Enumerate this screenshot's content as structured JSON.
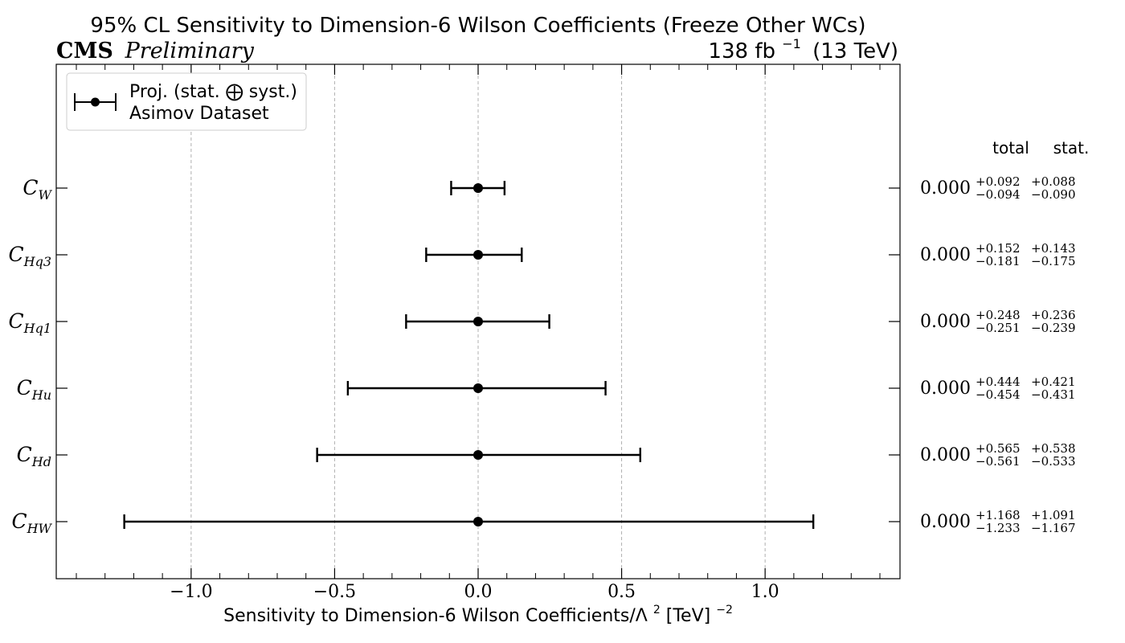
{
  "header": {
    "title": "95% CL Sensitivity to Dimension-6 Wilson Coefficients (Freeze Other WCs)",
    "experiment": "CMS",
    "status": "Preliminary",
    "lumi_value": "138 fb",
    "lumi_exp": "−1",
    "energy": "(13 TeV)"
  },
  "legend": {
    "line1": "Proj. (stat. ⨁ syst.)",
    "line2": "Asimov Dataset"
  },
  "table": {
    "total_header": "total",
    "stat_header": "stat."
  },
  "axis": {
    "xlabel_main": "Sensitivity to Dimension-6 Wilson Coefficients/Λ",
    "xlabel_sup": "2",
    "xlabel_unit": " [TeV]",
    "xlabel_unit_sup": "−2"
  },
  "colors": {
    "marker": "#000000",
    "grid": "#b0b0b0"
  },
  "chart_data": {
    "type": "scatter",
    "orientation": "horizontal",
    "xlim": [
      -1.47,
      1.47
    ],
    "xticks": [
      {
        "v": -1.0,
        "label": "−1.0"
      },
      {
        "v": -0.5,
        "label": "−0.5"
      },
      {
        "v": 0.0,
        "label": "0.0"
      },
      {
        "v": 0.5,
        "label": "0.5"
      },
      {
        "v": 1.0,
        "label": "1.0"
      }
    ],
    "grid": "vertical-dashed",
    "legend_position": "top-left",
    "series": [
      {
        "label": "C",
        "sub": "W",
        "value": 0.0,
        "value_text": "0.000",
        "total_up": 0.092,
        "total_down": -0.094,
        "total_up_text": "+0.092",
        "total_down_text": "−0.094",
        "stat_up_text": "+0.088",
        "stat_down_text": "−0.090"
      },
      {
        "label": "C",
        "sub": "Hq3",
        "value": 0.0,
        "value_text": "0.000",
        "total_up": 0.152,
        "total_down": -0.181,
        "total_up_text": "+0.152",
        "total_down_text": "−0.181",
        "stat_up_text": "+0.143",
        "stat_down_text": "−0.175"
      },
      {
        "label": "C",
        "sub": "Hq1",
        "value": 0.0,
        "value_text": "0.000",
        "total_up": 0.248,
        "total_down": -0.251,
        "total_up_text": "+0.248",
        "total_down_text": "−0.251",
        "stat_up_text": "+0.236",
        "stat_down_text": "−0.239"
      },
      {
        "label": "C",
        "sub": "Hu",
        "value": 0.0,
        "value_text": "0.000",
        "total_up": 0.444,
        "total_down": -0.454,
        "total_up_text": "+0.444",
        "total_down_text": "−0.454",
        "stat_up_text": "+0.421",
        "stat_down_text": "−0.431"
      },
      {
        "label": "C",
        "sub": "Hd",
        "value": 0.0,
        "value_text": "0.000",
        "total_up": 0.565,
        "total_down": -0.561,
        "total_up_text": "+0.565",
        "total_down_text": "−0.561",
        "stat_up_text": "+0.538",
        "stat_down_text": "−0.533"
      },
      {
        "label": "C",
        "sub": "HW",
        "value": 0.0,
        "value_text": "0.000",
        "total_up": 1.168,
        "total_down": -1.233,
        "total_up_text": "+1.168",
        "total_down_text": "−1.233",
        "stat_up_text": "+1.091",
        "stat_down_text": "−1.167"
      }
    ]
  }
}
